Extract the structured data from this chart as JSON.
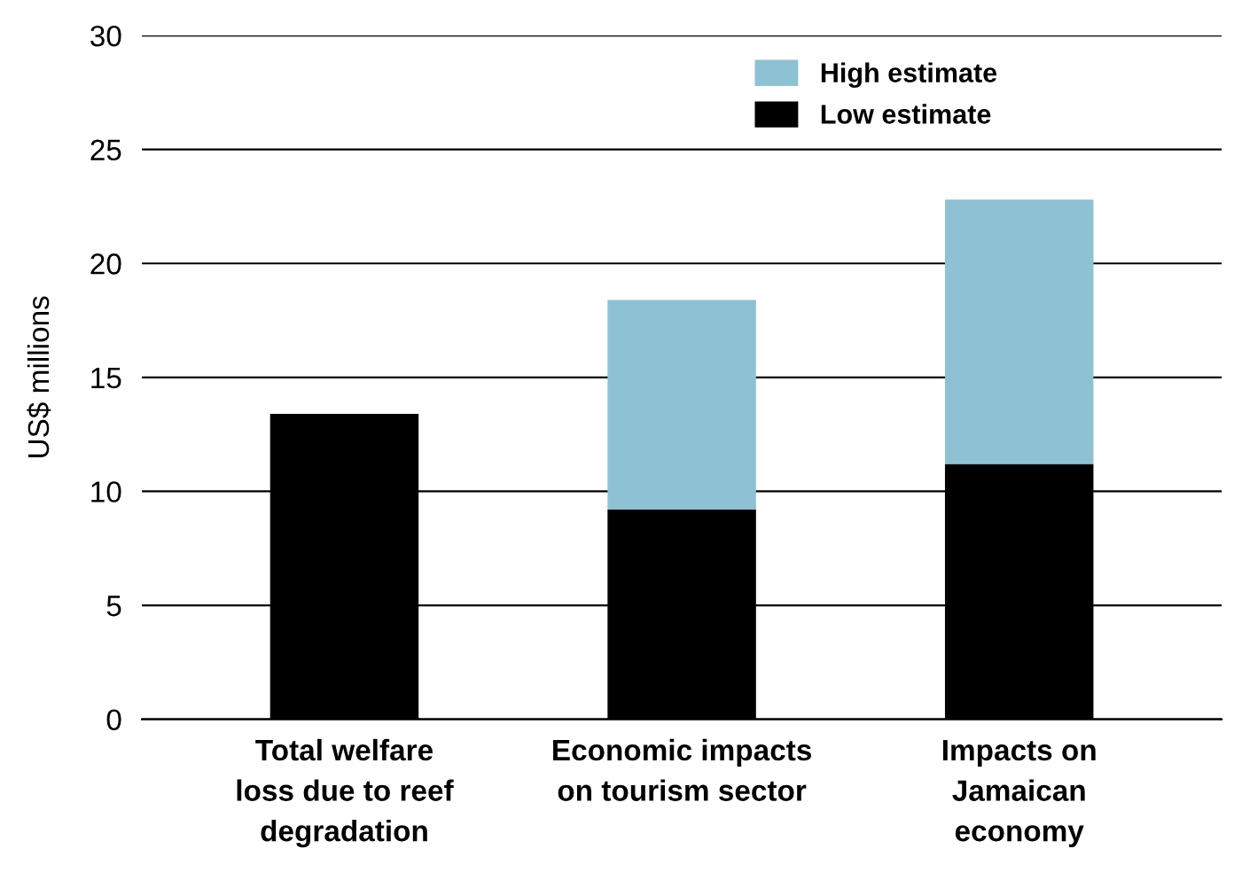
{
  "chart_data": {
    "type": "bar",
    "ylabel": "US$ millions",
    "categories": [
      "Total welfare\nloss due to reef\ndegradation",
      "Economic impacts\non tourism sector",
      "Impacts on\nJamaican\neconomy"
    ],
    "series": [
      {
        "name": "Low estimate",
        "color": "#000000",
        "values": [
          13.4,
          9.2,
          11.2
        ]
      },
      {
        "name": "High estimate",
        "color": "#8fc1d4",
        "values": [
          null,
          9.2,
          11.6
        ]
      }
    ],
    "stacked": true,
    "ylim": [
      0,
      30
    ],
    "yticks": [
      0,
      5,
      10,
      15,
      20,
      25,
      30
    ],
    "grid": "y",
    "legend": "top right"
  }
}
